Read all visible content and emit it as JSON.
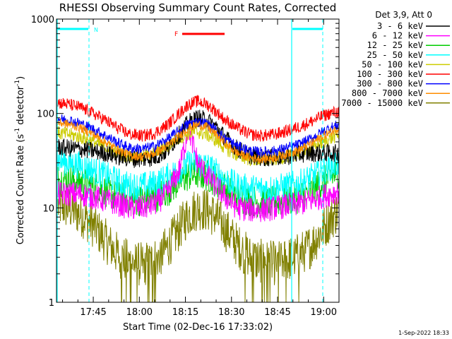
{
  "chart_data": {
    "type": "line",
    "title": "RHESSI Observing Summary Count Rates, Corrected",
    "xlabel": "Start Time (02-Dec-16 17:33:02)",
    "ylabel_main": "Corrected Count Rate (s",
    "ylabel_sup1": "-1",
    "ylabel_mid": " detector",
    "ylabel_sup2": "-1",
    "ylabel_end": ")",
    "yscale": "log",
    "ylim": [
      1,
      1000
    ],
    "xlim_min": [
      33.03,
      125.0
    ],
    "y_ticks": [
      {
        "v": 1,
        "label": "1"
      },
      {
        "v": 10,
        "label": "10"
      },
      {
        "v": 100,
        "label": "100"
      },
      {
        "v": 1000,
        "label": "1000"
      }
    ],
    "x_ticks": [
      {
        "v": 45,
        "label": "17:45"
      },
      {
        "v": 60,
        "label": "18:00"
      },
      {
        "v": 75,
        "label": "18:15"
      },
      {
        "v": 90,
        "label": "18:30"
      },
      {
        "v": 105,
        "label": "18:45"
      },
      {
        "v": 120,
        "label": "19:00"
      }
    ],
    "legend_header": "Det 3,9, Att 0",
    "footer": "1-Sep-2022 18:33",
    "x_times": [
      33.5,
      37,
      41,
      45,
      49,
      53,
      57,
      61,
      65,
      69,
      73,
      76,
      79,
      82,
      85,
      88,
      92,
      96,
      100,
      104,
      108,
      112,
      116,
      119,
      122,
      125
    ],
    "series": [
      {
        "name": "3 - 6 keV",
        "color": "#000000",
        "noise": 0.1,
        "values": [
          44,
          43,
          42,
          40,
          38,
          35,
          33,
          33,
          34,
          40,
          60,
          80,
          90,
          85,
          72,
          55,
          42,
          36,
          34,
          34,
          35,
          37,
          38,
          38,
          38,
          38
        ]
      },
      {
        "name": "6 - 12 keV",
        "color": "#ff00ff",
        "noise": 0.14,
        "values": [
          14,
          14,
          14,
          13,
          12,
          11,
          10,
          10,
          11,
          14,
          25,
          70,
          30,
          22,
          17,
          13,
          10,
          9.5,
          9.5,
          10,
          10.5,
          11,
          12,
          13,
          14,
          15
        ]
      },
      {
        "name": "12 - 25 keV",
        "color": "#00cc00",
        "noise": 0.18,
        "values": [
          20,
          20,
          19,
          17,
          15,
          13,
          12,
          12,
          13,
          15,
          19,
          22,
          23,
          22,
          19,
          16,
          13,
          12,
          11.5,
          11.5,
          12,
          13,
          15,
          18,
          21,
          24
        ]
      },
      {
        "name": "25 - 50 keV",
        "color": "#00ffff",
        "noise": 0.16,
        "values": [
          32,
          30,
          28,
          25,
          22,
          19,
          17,
          17,
          18,
          21,
          25,
          29,
          30,
          28,
          24,
          20,
          17,
          16,
          16,
          16,
          17,
          18,
          21,
          24,
          27,
          30
        ]
      },
      {
        "name": "50 - 100 keV",
        "color": "#cccc00",
        "noise": 0.08,
        "values": [
          62,
          60,
          56,
          50,
          44,
          38,
          35,
          35,
          38,
          44,
          55,
          62,
          64,
          60,
          52,
          43,
          36,
          33,
          32,
          33,
          35,
          38,
          42,
          48,
          54,
          60
        ]
      },
      {
        "name": "100 - 300 keV",
        "color": "#ff0000",
        "noise": 0.07,
        "values": [
          130,
          125,
          115,
          100,
          85,
          70,
          60,
          58,
          62,
          75,
          100,
          125,
          135,
          125,
          105,
          85,
          70,
          60,
          58,
          60,
          65,
          72,
          82,
          92,
          100,
          105
        ]
      },
      {
        "name": "300 - 800 keV",
        "color": "#0000ff",
        "noise": 0.06,
        "values": [
          88,
          85,
          78,
          68,
          58,
          49,
          43,
          42,
          45,
          53,
          66,
          78,
          82,
          78,
          66,
          54,
          45,
          40,
          39,
          40,
          43,
          47,
          54,
          62,
          70,
          76
        ]
      },
      {
        "name": "800 - 7000 keV",
        "color": "#ff8c00",
        "noise": 0.05,
        "values": [
          80,
          77,
          70,
          60,
          50,
          41,
          36,
          35,
          38,
          45,
          58,
          70,
          76,
          72,
          60,
          48,
          38,
          34,
          33,
          34,
          37,
          41,
          48,
          56,
          63,
          70
        ]
      },
      {
        "name": "7000 - 15000 keV",
        "color": "#808000",
        "noise": 0.25,
        "values": [
          10.5,
          10,
          8.5,
          6.5,
          4.5,
          3.2,
          2.6,
          2.5,
          2.8,
          3.8,
          6,
          8.5,
          10,
          9.5,
          8,
          6,
          4,
          3,
          2.7,
          2.6,
          2.8,
          3.2,
          4,
          5.5,
          7.5,
          9.5
        ]
      }
    ],
    "annotations": {
      "n_label": "N",
      "f_label": "F"
    }
  }
}
